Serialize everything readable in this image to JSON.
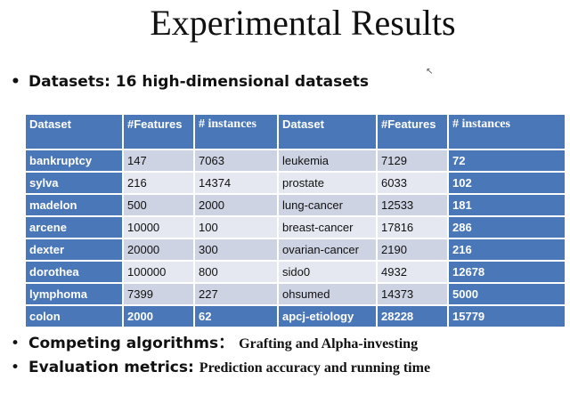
{
  "title": "Experimental Results",
  "bullets": {
    "datasets": "Datasets: 16 high-dimensional datasets",
    "competing_label": "Competing algorithms：",
    "competing_value": "Grafting and Alpha-investing",
    "metrics_label": "Evaluation metrics:",
    "metrics_value": "Prediction accuracy and  running time",
    "marker": "•"
  },
  "table": {
    "headers": [
      "Dataset",
      "#Features",
      "# instances",
      "Dataset",
      "#Features",
      "# instances"
    ],
    "rows": [
      [
        "bankruptcy",
        "147",
        "7063",
        "leukemia",
        "7129",
        "72"
      ],
      [
        "sylva",
        "216",
        "14374",
        "prostate",
        "6033",
        "102"
      ],
      [
        "madelon",
        "500",
        "2000",
        "lung-cancer",
        "12533",
        "181"
      ],
      [
        "arcene",
        "10000",
        "100",
        "breast-cancer",
        "17816",
        "286"
      ],
      [
        "dexter",
        "20000",
        "300",
        "ovarian-cancer",
        "2190",
        "216"
      ],
      [
        "dorothea",
        "100000",
        "800",
        "sido0",
        "4932",
        "12678"
      ],
      [
        "lymphoma",
        "7399",
        "227",
        "ohsumed",
        "14373",
        "5000"
      ],
      [
        "colon",
        "2000",
        "62",
        "apcj-etiology",
        "28228",
        "15779"
      ]
    ]
  },
  "colors": {
    "header_blue": "#4a77b8",
    "row_dark": "#cdd3e3",
    "row_light": "#e5e8f0"
  }
}
